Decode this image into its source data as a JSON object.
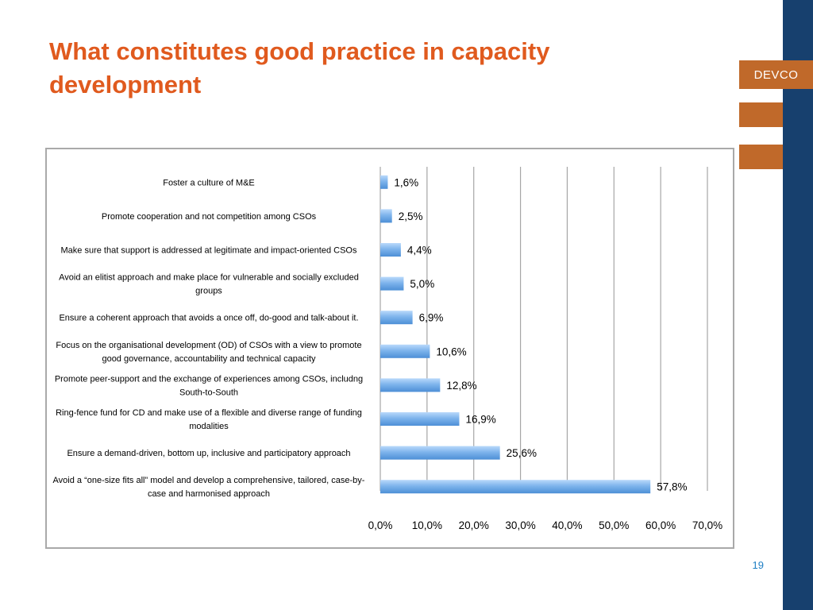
{
  "slide": {
    "title_line1": "What constitutes good practice in capacity",
    "title_line2": "development",
    "brand": "DEVCO",
    "page_number": "19"
  },
  "colors": {
    "title": "#e05a1e",
    "brand_band": "#17406e",
    "brand_orange": "#c0692a",
    "bar": "#7eb4ec",
    "gridline": "#a6a6a6",
    "page_number": "#1e7fc4"
  },
  "chart_data": {
    "type": "bar",
    "orientation": "horizontal",
    "categories": [
      [
        "Foster a culture of M&E"
      ],
      [
        "Promote cooperation and not competition among CSOs"
      ],
      [
        "Make sure that support is addressed at legitimate and impact-oriented CSOs"
      ],
      [
        "Avoid an elitist approach and make place for vulnerable and socially excluded",
        "groups"
      ],
      [
        "Ensure a coherent approach that avoids a once off, do-good and talk-about it."
      ],
      [
        "Focus on the organisational development (OD) of CSOs with a view to promote",
        "good governance, accountability and technical capacity"
      ],
      [
        "Promote peer-support and the exchange of experiences among CSOs, includng",
        "South-to-South"
      ],
      [
        "Ring-fence fund for CD and make use of a flexible and diverse range of funding",
        "modalities"
      ],
      [
        "Ensure a demand-driven, bottom up, inclusive and participatory approach"
      ],
      [
        "Avoid a “one-size fits all” model and develop a comprehensive, tailored, case-by-",
        "case and harmonised approach"
      ]
    ],
    "values": [
      1.6,
      2.5,
      4.4,
      5.0,
      6.9,
      10.6,
      12.8,
      16.9,
      25.6,
      57.8
    ],
    "data_labels": [
      "1,6%",
      "2,5%",
      "4,4%",
      "5,0%",
      "6,9%",
      "10,6%",
      "12,8%",
      "16,9%",
      "25,6%",
      "57,8%"
    ],
    "xlim": [
      0,
      70
    ],
    "xticks": [
      0,
      10,
      20,
      30,
      40,
      50,
      60,
      70
    ],
    "xtick_labels": [
      "0,0%",
      "10,0%",
      "20,0%",
      "30,0%",
      "40,0%",
      "50,0%",
      "60,0%",
      "70,0%"
    ],
    "grid": "vertical",
    "legend": "none"
  }
}
